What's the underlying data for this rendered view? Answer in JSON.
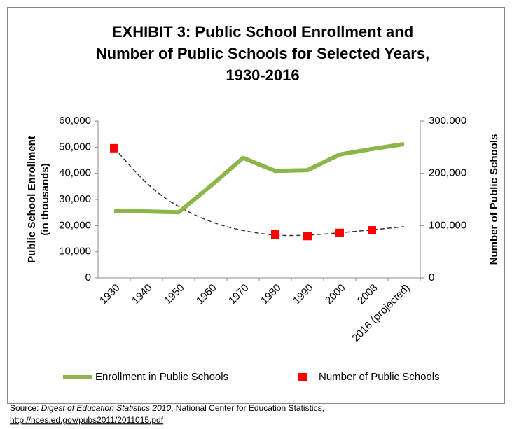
{
  "chart_data": {
    "type": "line",
    "title": [
      "EXHIBIT 3: Public School Enrollment and",
      "Number of Public Schools for Selected Years,",
      "1930-2016"
    ],
    "ylabel": [
      "Public School Enrollment",
      "(in thousands)"
    ],
    "y2label": "Number of Public Schools",
    "categories": [
      "1930",
      "1940",
      "1950",
      "1960",
      "1970",
      "1980",
      "1990",
      "2000",
      "2008",
      "2016 (projected)"
    ],
    "series": [
      {
        "name": "Enrollment in Public Schools",
        "color": "#8cb54a",
        "axis": "y",
        "values": [
          25700,
          25400,
          25100,
          35200,
          45900,
          40900,
          41200,
          47200,
          49300,
          51200
        ]
      },
      {
        "name": "Number of Public Schools",
        "color": "#ff0000",
        "axis": "y2",
        "values": [
          248000,
          null,
          null,
          null,
          null,
          83000,
          80000,
          86000,
          91000,
          null
        ]
      }
    ],
    "ylim": [
      0,
      60000
    ],
    "yticks": [
      0,
      {
        "value": 10000,
        "label": "10,000"
      },
      {
        "value": 20000,
        "label": "20,000"
      },
      {
        "value": 30000,
        "label": "30,000"
      },
      {
        "value": 40000,
        "label": "40,000"
      },
      {
        "value": 50000,
        "label": "50,000"
      },
      {
        "value": 60000,
        "label": "60,000"
      }
    ],
    "y2lim": [
      0,
      300000
    ],
    "y2ticks": [
      0,
      {
        "value": 100000,
        "label": "100,000"
      },
      {
        "value": 200000,
        "label": "200,000"
      },
      {
        "value": 300000,
        "label": "300,000"
      }
    ],
    "grid": false,
    "legend": "bottom",
    "source": {
      "prefix": "Source: ",
      "title": "Digest of Education Statistics 2010",
      "rest": ", National Center for Education Statistics,",
      "url": "http://nces.ed.gov/pubs2011/2011015.pdf"
    }
  }
}
